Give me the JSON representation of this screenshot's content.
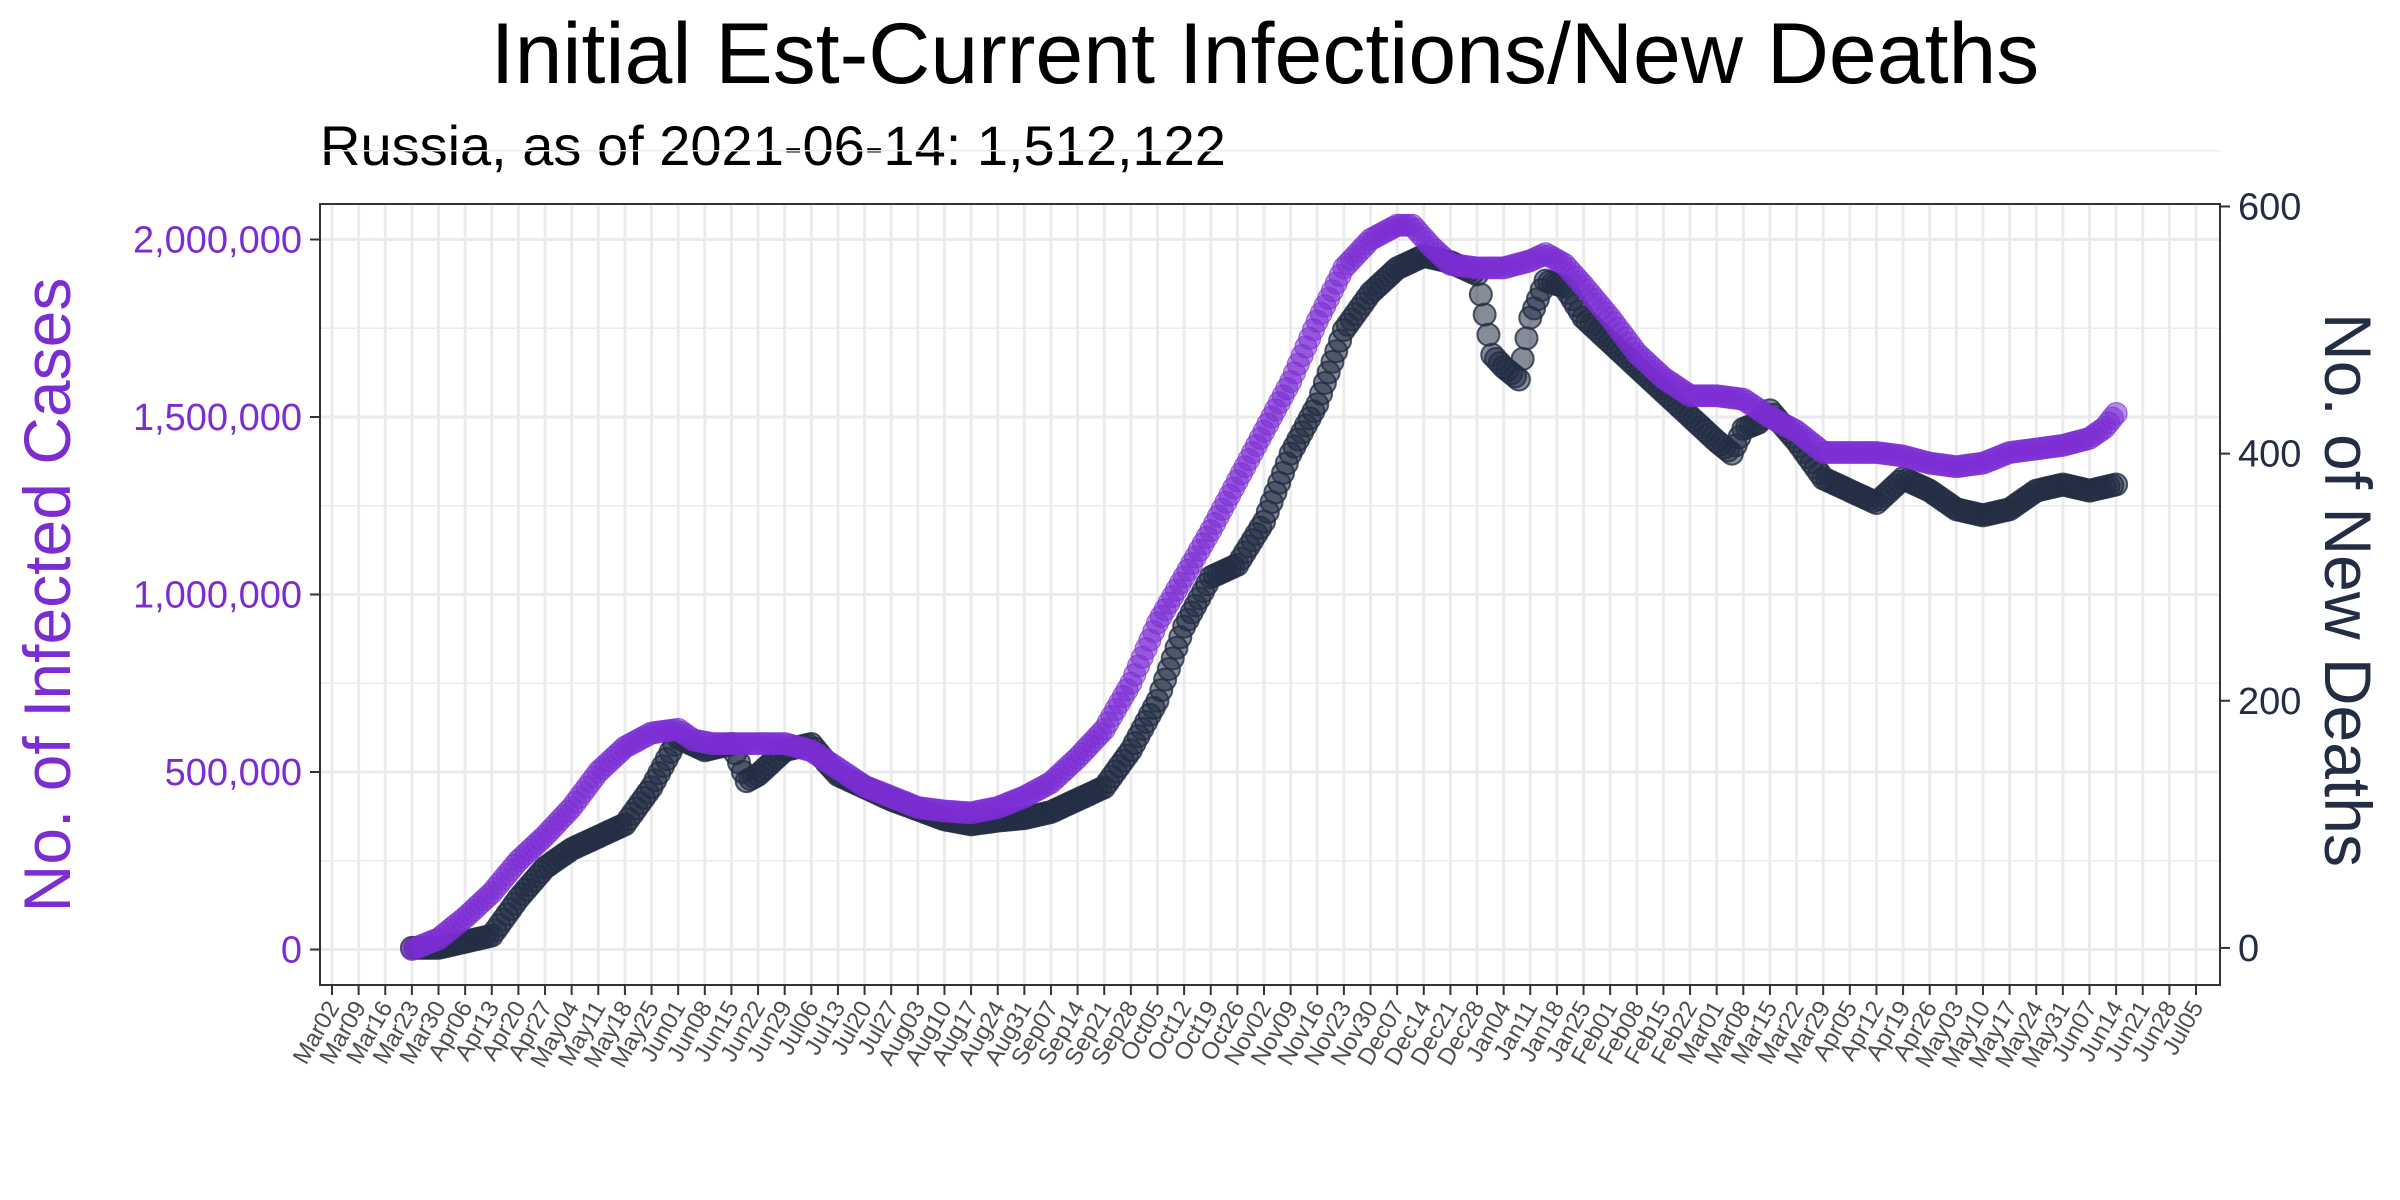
{
  "chart_data": {
    "type": "line",
    "title": "Initial Est-Current Infections/New Deaths",
    "subtitle": "Russia, as of 2021-06-14:  1,512,122",
    "ylabel_left": "No. of Infected Cases",
    "ylabel_right": "No. of New Deaths",
    "xlabel": "",
    "colors": {
      "infections": "#7B2DD3",
      "deaths": "#232D44",
      "grid": "#EBEBEB"
    },
    "y_left": {
      "lim": [
        -100000,
        2100000
      ],
      "ticks": [
        0,
        500000,
        1000000,
        1500000,
        2000000
      ],
      "tick_labels": [
        "0",
        "500,000",
        "1,000,000",
        "1,500,000",
        "2,000,000"
      ]
    },
    "y_right": {
      "lim": [
        -30,
        602
      ],
      "ticks": [
        0,
        200,
        400,
        600
      ],
      "tick_labels": [
        "0",
        "200",
        "400",
        "600"
      ]
    },
    "x": {
      "lim": [
        "2020-03-02",
        "2021-07-05"
      ],
      "tick_dates": [
        "2020-03-02",
        "2020-03-09",
        "2020-03-16",
        "2020-03-23",
        "2020-03-30",
        "2020-04-06",
        "2020-04-13",
        "2020-04-20",
        "2020-04-27",
        "2020-05-04",
        "2020-05-11",
        "2020-05-18",
        "2020-05-25",
        "2020-06-01",
        "2020-06-08",
        "2020-06-15",
        "2020-06-22",
        "2020-06-29",
        "2020-07-06",
        "2020-07-13",
        "2020-07-20",
        "2020-07-27",
        "2020-08-03",
        "2020-08-10",
        "2020-08-17",
        "2020-08-24",
        "2020-08-31",
        "2020-09-07",
        "2020-09-14",
        "2020-09-21",
        "2020-09-28",
        "2020-10-05",
        "2020-10-12",
        "2020-10-19",
        "2020-10-26",
        "2020-11-02",
        "2020-11-09",
        "2020-11-16",
        "2020-11-23",
        "2020-11-30",
        "2020-12-07",
        "2020-12-14",
        "2020-12-21",
        "2020-12-28",
        "2021-01-04",
        "2021-01-11",
        "2021-01-18",
        "2021-01-25",
        "2021-02-01",
        "2021-02-08",
        "2021-02-15",
        "2021-02-22",
        "2021-03-01",
        "2021-03-08",
        "2021-03-15",
        "2021-03-22",
        "2021-03-29",
        "2021-04-05",
        "2021-04-12",
        "2021-04-19",
        "2021-04-26",
        "2021-05-03",
        "2021-05-10",
        "2021-05-17",
        "2021-05-24",
        "2021-05-31",
        "2021-06-07",
        "2021-06-14",
        "2021-06-21",
        "2021-06-28",
        "2021-07-05"
      ],
      "tick_labels": [
        "Mar02",
        "Mar09",
        "Mar16",
        "Mar23",
        "Mar30",
        "Apr06",
        "Apr13",
        "Apr20",
        "Apr27",
        "May04",
        "May11",
        "May18",
        "May25",
        "Jun01",
        "Jun08",
        "Jun15",
        "Jun22",
        "Jun29",
        "Jul06",
        "Jul13",
        "Jul20",
        "Jul27",
        "Aug03",
        "Aug10",
        "Aug17",
        "Aug24",
        "Aug31",
        "Sep07",
        "Sep14",
        "Sep21",
        "Sep28",
        "Oct05",
        "Oct12",
        "Oct19",
        "Oct26",
        "Nov02",
        "Nov09",
        "Nov16",
        "Nov23",
        "Nov30",
        "Dec07",
        "Dec14",
        "Dec21",
        "Dec28",
        "Jan04",
        "Jan11",
        "Jan18",
        "Jan25",
        "Feb01",
        "Feb08",
        "Feb15",
        "Feb22",
        "Mar01",
        "Mar08",
        "Mar15",
        "Mar22",
        "Mar29",
        "Apr05",
        "Apr12",
        "Apr19",
        "Apr26",
        "May03",
        "May10",
        "May17",
        "May24",
        "May31",
        "Jun07",
        "Jun14",
        "Jun21",
        "Jun28",
        "Jul05"
      ]
    },
    "grid": true,
    "legend": "none",
    "series": [
      {
        "axis": "left",
        "x": [
          "2020-03-23",
          "2020-03-30",
          "2020-04-06",
          "2020-04-13",
          "2020-04-20",
          "2020-04-27",
          "2020-05-04",
          "2020-05-11",
          "2020-05-18",
          "2020-05-25",
          "2020-06-01",
          "2020-06-05",
          "2020-06-10",
          "2020-06-15",
          "2020-06-22",
          "2020-06-29",
          "2020-07-06",
          "2020-07-13",
          "2020-07-20",
          "2020-07-27",
          "2020-08-03",
          "2020-08-10",
          "2020-08-17",
          "2020-08-24",
          "2020-08-31",
          "2020-09-07",
          "2020-09-14",
          "2020-09-21",
          "2020-09-28",
          "2020-10-05",
          "2020-10-12",
          "2020-10-19",
          "2020-10-26",
          "2020-11-02",
          "2020-11-09",
          "2020-11-16",
          "2020-11-23",
          "2020-11-30",
          "2020-12-07",
          "2020-12-11",
          "2020-12-16",
          "2020-12-21",
          "2020-12-28",
          "2021-01-04",
          "2021-01-11",
          "2021-01-15",
          "2021-01-20",
          "2021-01-25",
          "2021-02-01",
          "2021-02-08",
          "2021-02-15",
          "2021-02-22",
          "2021-03-01",
          "2021-03-08",
          "2021-03-15",
          "2021-03-22",
          "2021-03-29",
          "2021-04-05",
          "2021-04-12",
          "2021-04-19",
          "2021-04-26",
          "2021-05-03",
          "2021-05-10",
          "2021-05-17",
          "2021-05-24",
          "2021-05-31",
          "2021-06-07",
          "2021-06-11",
          "2021-06-14"
        ],
        "y": [
          0,
          30000,
          90000,
          160000,
          250000,
          320000,
          400000,
          500000,
          570000,
          610000,
          620000,
          590000,
          580000,
          580000,
          580000,
          580000,
          560000,
          510000,
          460000,
          430000,
          400000,
          390000,
          385000,
          400000,
          430000,
          470000,
          540000,
          620000,
          750000,
          920000,
          1050000,
          1180000,
          1320000,
          1460000,
          1600000,
          1770000,
          1920000,
          2000000,
          2040000,
          2040000,
          1980000,
          1930000,
          1920000,
          1920000,
          1940000,
          1960000,
          1930000,
          1870000,
          1780000,
          1680000,
          1610000,
          1560000,
          1560000,
          1550000,
          1500000,
          1460000,
          1400000,
          1400000,
          1400000,
          1390000,
          1370000,
          1360000,
          1370000,
          1400000,
          1410000,
          1420000,
          1440000,
          1470000,
          1510000
        ]
      },
      {
        "axis": "right",
        "x": [
          "2020-03-23",
          "2020-03-30",
          "2020-04-06",
          "2020-04-13",
          "2020-04-20",
          "2020-04-27",
          "2020-05-04",
          "2020-05-11",
          "2020-05-18",
          "2020-05-25",
          "2020-06-01",
          "2020-06-08",
          "2020-06-15",
          "2020-06-19",
          "2020-06-22",
          "2020-06-29",
          "2020-07-06",
          "2020-07-10",
          "2020-07-13",
          "2020-07-20",
          "2020-07-27",
          "2020-08-03",
          "2020-08-10",
          "2020-08-17",
          "2020-08-24",
          "2020-08-31",
          "2020-09-07",
          "2020-09-14",
          "2020-09-21",
          "2020-09-28",
          "2020-10-05",
          "2020-10-12",
          "2020-10-19",
          "2020-10-26",
          "2020-11-02",
          "2020-11-09",
          "2020-11-16",
          "2020-11-23",
          "2020-11-30",
          "2020-12-07",
          "2020-12-14",
          "2020-12-21",
          "2020-12-28",
          "2021-01-01",
          "2021-01-04",
          "2021-01-08",
          "2021-01-11",
          "2021-01-15",
          "2021-01-20",
          "2021-01-25",
          "2021-02-01",
          "2021-02-08",
          "2021-02-15",
          "2021-02-22",
          "2021-03-01",
          "2021-03-05",
          "2021-03-08",
          "2021-03-12",
          "2021-03-15",
          "2021-03-22",
          "2021-03-29",
          "2021-04-05",
          "2021-04-12",
          "2021-04-19",
          "2021-04-26",
          "2021-05-03",
          "2021-05-10",
          "2021-05-17",
          "2021-05-24",
          "2021-05-31",
          "2021-06-07",
          "2021-06-14"
        ],
        "y": [
          0,
          0,
          5,
          10,
          40,
          65,
          80,
          90,
          100,
          130,
          170,
          160,
          165,
          135,
          140,
          160,
          165,
          150,
          140,
          130,
          120,
          112,
          104,
          100,
          103,
          105,
          110,
          120,
          130,
          160,
          200,
          260,
          300,
          310,
          345,
          400,
          440,
          500,
          530,
          550,
          560,
          555,
          545,
          480,
          470,
          460,
          510,
          540,
          535,
          510,
          490,
          470,
          450,
          430,
          410,
          400,
          420,
          425,
          435,
          410,
          380,
          370,
          360,
          380,
          370,
          355,
          350,
          355,
          370,
          375,
          370,
          375
        ]
      }
    ]
  }
}
